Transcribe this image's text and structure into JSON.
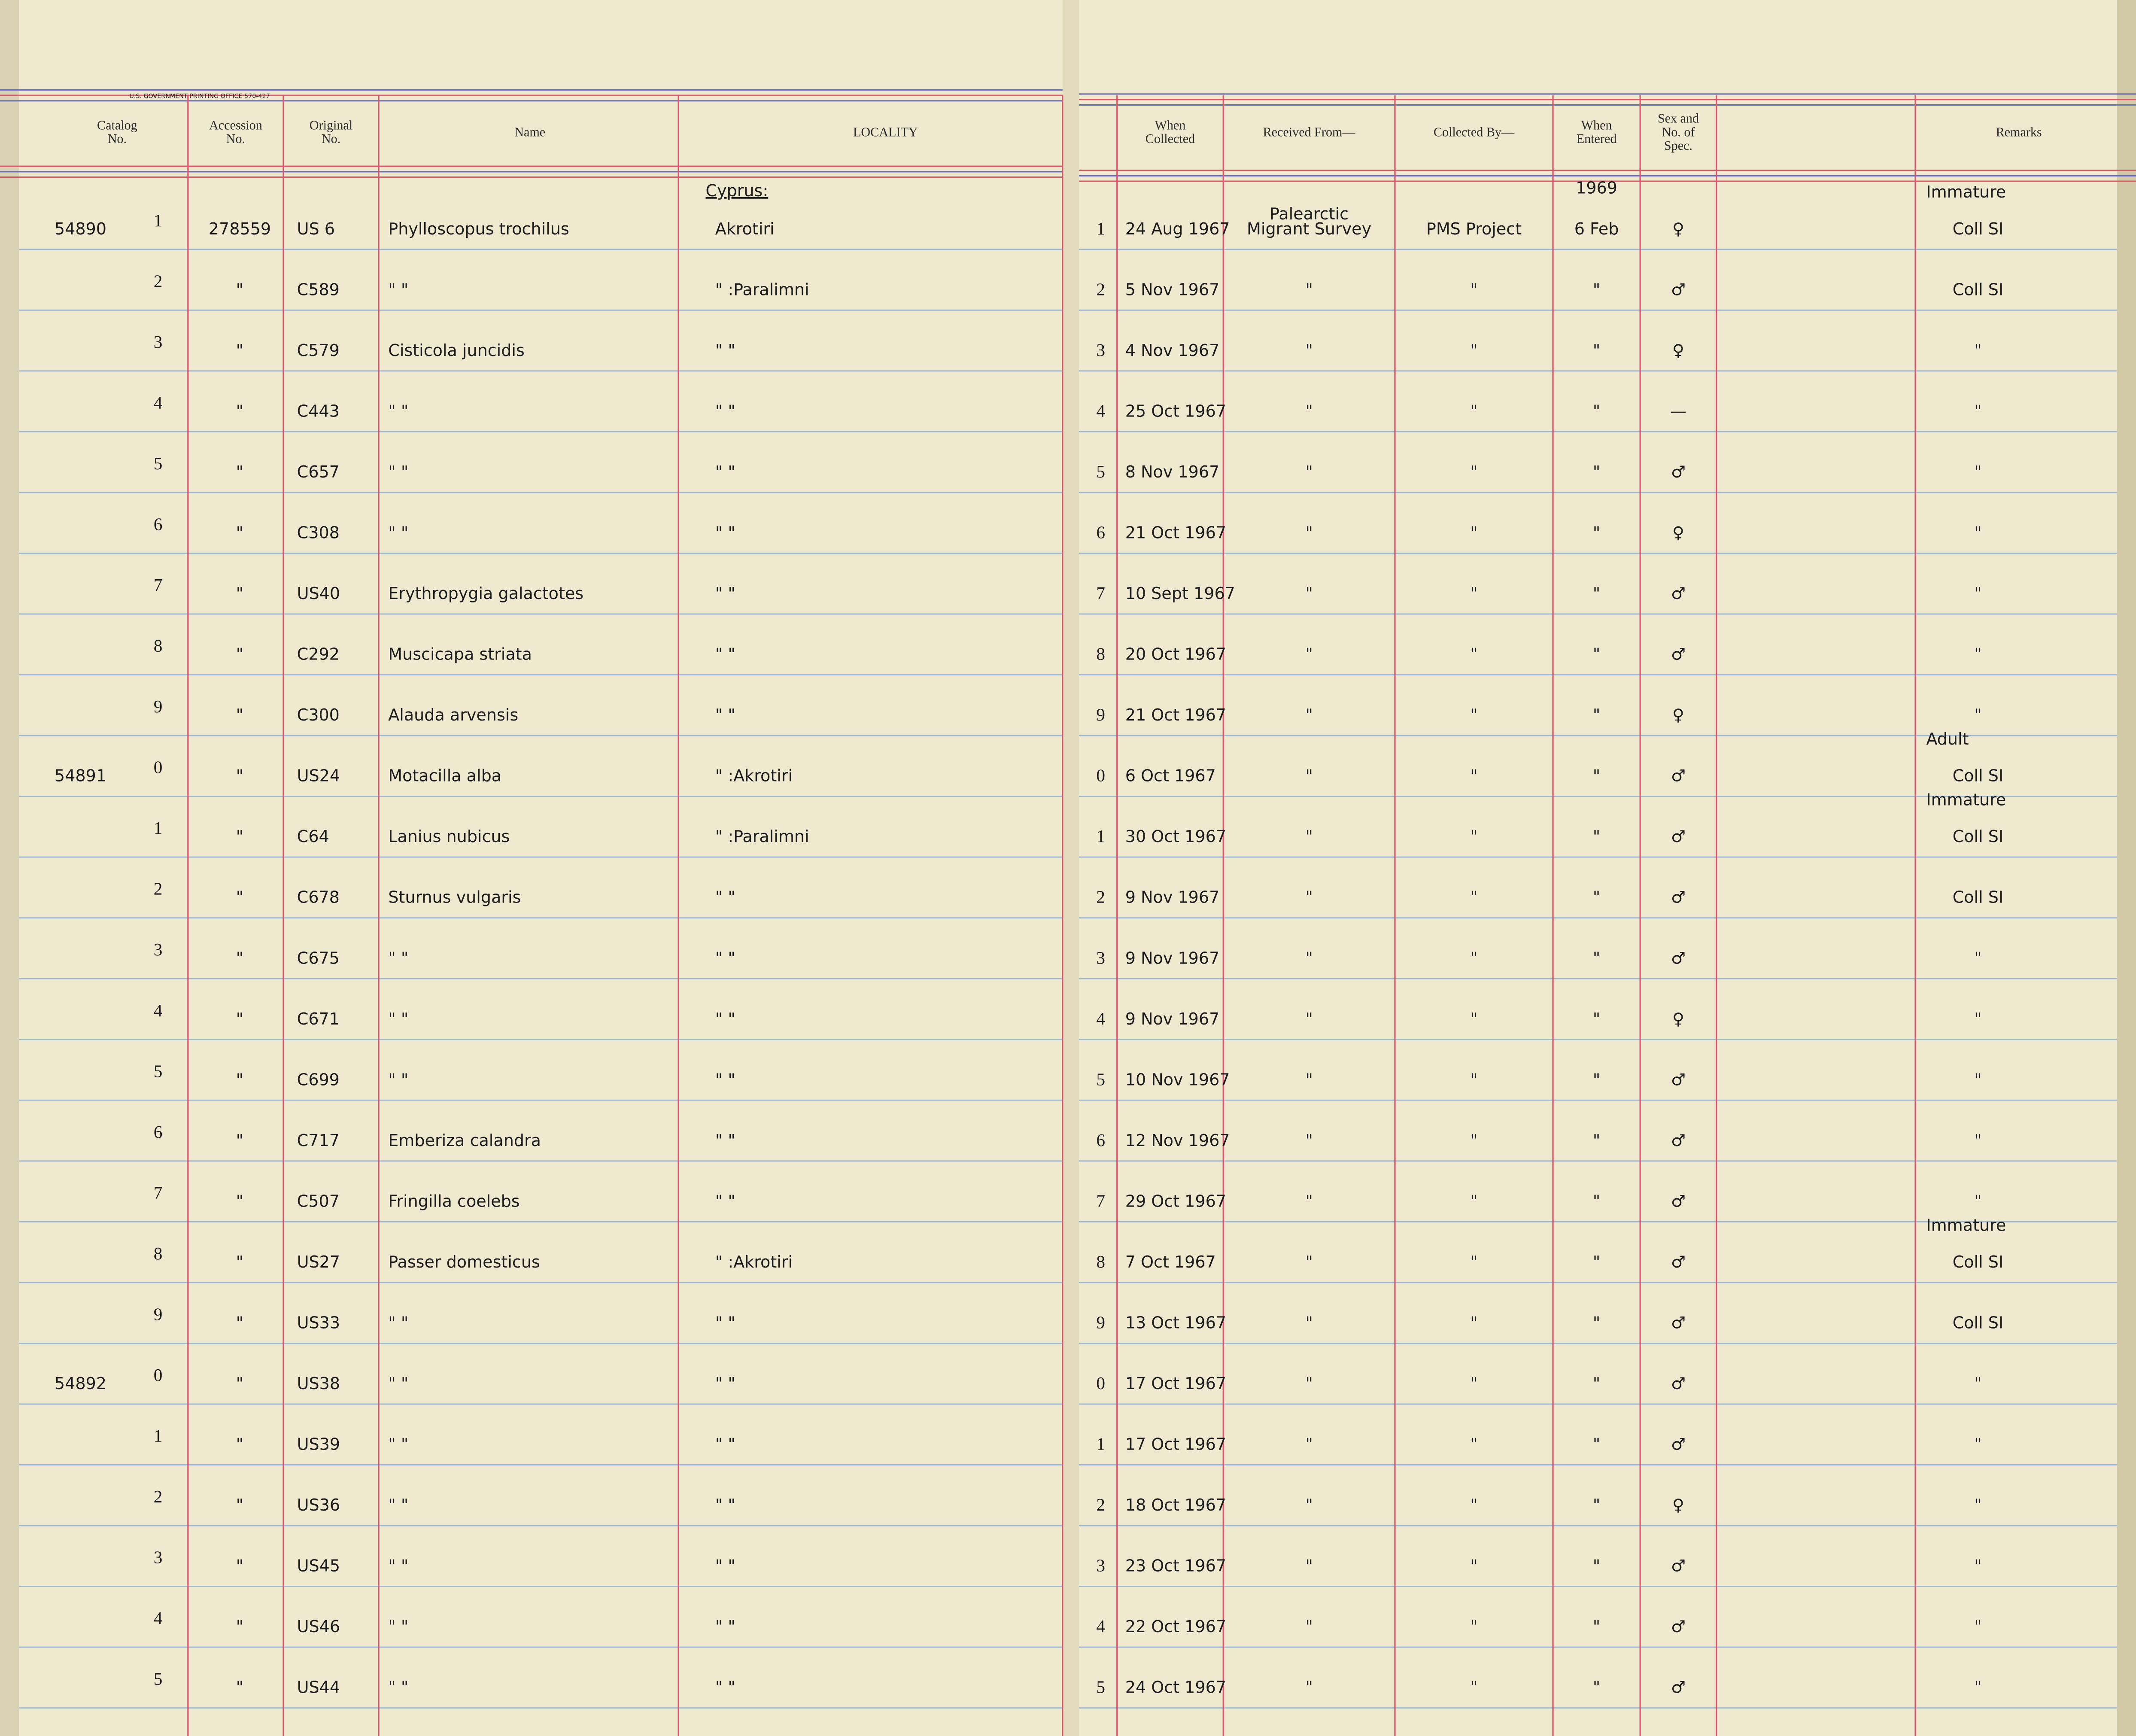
{
  "header": {
    "printer": "U.S. GOVERNMENT PRINTING OFFICE 570-427",
    "catalog": [
      "Catalog",
      "No."
    ],
    "accession": [
      "Accession",
      "No."
    ],
    "original": [
      "Original",
      "No."
    ],
    "name": [
      "Name"
    ],
    "locality": [
      "LOCALITY"
    ],
    "collected": [
      "When",
      "Collected"
    ],
    "received": [
      "Received From—"
    ],
    "collected_by": [
      "Collected By—"
    ],
    "entered": [
      "When",
      "Entered"
    ],
    "sex": [
      "Sex and",
      "No. of",
      "Spec."
    ],
    "remarks": [
      "Remarks"
    ]
  },
  "locality_heading": "Cyprus:",
  "entered_year": "1969",
  "rows": [
    {
      "catalog": "54890",
      "digit": "1",
      "accession": "278559",
      "original": "US 6",
      "name": "Phylloscopus trochilus",
      "locality": "Akrotiri",
      "line": "1",
      "collected": "24 Aug 1967",
      "received": [
        "Palearctic",
        "Migrant Survey"
      ],
      "collected_by": "PMS Project",
      "entered": "6 Feb",
      "sex": "♀",
      "remarks_note": "Immature",
      "remarks": "Coll SI"
    },
    {
      "digit": "2",
      "accession": "\"",
      "original": "C589",
      "name": "\"        \"",
      "locality": "\"     :Paralimni",
      "line": "2",
      "collected": "5 Nov 1967",
      "received": [
        "\""
      ],
      "collected_by": "\"",
      "entered": "\"",
      "sex": "♂",
      "remarks": "Coll SI"
    },
    {
      "digit": "3",
      "accession": "\"",
      "original": "C579",
      "name": "Cisticola juncidis",
      "locality": "\"    \"",
      "line": "3",
      "collected": "4 Nov 1967",
      "received": [
        "\""
      ],
      "collected_by": "\"",
      "entered": "\"",
      "sex": "♀",
      "remarks": "\""
    },
    {
      "digit": "4",
      "accession": "\"",
      "original": "C443",
      "name": "\"        \"",
      "locality": "\"    \"",
      "line": "4",
      "collected": "25 Oct 1967",
      "received": [
        "\""
      ],
      "collected_by": "\"",
      "entered": "\"",
      "sex": "—",
      "remarks": "\""
    },
    {
      "digit": "5",
      "accession": "\"",
      "original": "C657",
      "name": "\"        \"",
      "locality": "\"    \"",
      "line": "5",
      "collected": "8 Nov 1967",
      "received": [
        "\""
      ],
      "collected_by": "\"",
      "entered": "\"",
      "sex": "♂",
      "remarks": "\""
    },
    {
      "digit": "6",
      "accession": "\"",
      "original": "C308",
      "name": "\"        \"",
      "locality": "\"    \"",
      "line": "6",
      "collected": "21 Oct 1967",
      "received": [
        "\""
      ],
      "collected_by": "\"",
      "entered": "\"",
      "sex": "♀",
      "remarks": "\""
    },
    {
      "digit": "7",
      "accession": "\"",
      "original": "US40",
      "name": "Erythropygia galactotes",
      "locality": "\"    \"",
      "line": "7",
      "collected": "10 Sept 1967",
      "received": [
        "\""
      ],
      "collected_by": "\"",
      "entered": "\"",
      "sex": "♂",
      "remarks": "\""
    },
    {
      "digit": "8",
      "accession": "\"",
      "original": "C292",
      "name": "Muscicapa striata",
      "locality": "\"    \"",
      "line": "8",
      "collected": "20 Oct 1967",
      "received": [
        "\""
      ],
      "collected_by": "\"",
      "entered": "\"",
      "sex": "♂",
      "remarks": "\""
    },
    {
      "digit": "9",
      "accession": "\"",
      "original": "C300",
      "name": "Alauda arvensis",
      "locality": "\"    \"",
      "line": "9",
      "collected": "21 Oct 1967",
      "received": [
        "\""
      ],
      "collected_by": "\"",
      "entered": "\"",
      "sex": "♀",
      "remarks": "\""
    },
    {
      "catalog": "54891",
      "digit": "0",
      "accession": "\"",
      "original": "US24",
      "name": "Motacilla alba",
      "locality": "\"     :Akrotiri",
      "line": "0",
      "collected": "6 Oct 1967",
      "received": [
        "\""
      ],
      "collected_by": "\"",
      "entered": "\"",
      "sex": "♂",
      "remarks_note": "Adult",
      "remarks": "Coll SI"
    },
    {
      "digit": "1",
      "accession": "\"",
      "original": "C64",
      "name": "Lanius nubicus",
      "locality": "\"     :Paralimni",
      "line": "1",
      "collected": "30 Oct 1967",
      "received": [
        "\""
      ],
      "collected_by": "\"",
      "entered": "\"",
      "sex": "♂",
      "remarks_note": "Immature",
      "remarks": "Coll SI"
    },
    {
      "digit": "2",
      "accession": "\"",
      "original": "C678",
      "name": "Sturnus vulgaris",
      "locality": "\"    \"",
      "line": "2",
      "collected": "9 Nov 1967",
      "received": [
        "\""
      ],
      "collected_by": "\"",
      "entered": "\"",
      "sex": "♂",
      "remarks": "Coll SI"
    },
    {
      "digit": "3",
      "accession": "\"",
      "original": "C675",
      "name": "\"        \"",
      "locality": "\"    \"",
      "line": "3",
      "collected": "9 Nov 1967",
      "received": [
        "\""
      ],
      "collected_by": "\"",
      "entered": "\"",
      "sex": "♂",
      "remarks": "\""
    },
    {
      "digit": "4",
      "accession": "\"",
      "original": "C671",
      "name": "\"        \"",
      "locality": "\"    \"",
      "line": "4",
      "collected": "9 Nov 1967",
      "received": [
        "\""
      ],
      "collected_by": "\"",
      "entered": "\"",
      "sex": "♀",
      "remarks": "\""
    },
    {
      "digit": "5",
      "accession": "\"",
      "original": "C699",
      "name": "\"        \"",
      "locality": "\"    \"",
      "line": "5",
      "collected": "10 Nov 1967",
      "received": [
        "\""
      ],
      "collected_by": "\"",
      "entered": "\"",
      "sex": "♂",
      "remarks": "\""
    },
    {
      "digit": "6",
      "accession": "\"",
      "original": "C717",
      "name": "Emberiza calandra",
      "locality": "\"    \"",
      "line": "6",
      "collected": "12 Nov 1967",
      "received": [
        "\""
      ],
      "collected_by": "\"",
      "entered": "\"",
      "sex": "♂",
      "remarks": "\""
    },
    {
      "digit": "7",
      "accession": "\"",
      "original": "C507",
      "name": "Fringilla coelebs",
      "locality": "\"    \"",
      "line": "7",
      "collected": "29 Oct 1967",
      "received": [
        "\""
      ],
      "collected_by": "\"",
      "entered": "\"",
      "sex": "♂",
      "remarks": "\""
    },
    {
      "digit": "8",
      "accession": "\"",
      "original": "US27",
      "name": "Passer domesticus",
      "locality": "\"     :Akrotiri",
      "line": "8",
      "collected": "7 Oct 1967",
      "received": [
        "\""
      ],
      "collected_by": "\"",
      "entered": "\"",
      "sex": "♂",
      "remarks_note": "Immature",
      "remarks": "Coll SI"
    },
    {
      "digit": "9",
      "accession": "\"",
      "original": "US33",
      "name": "\"        \"",
      "locality": "\"    \"",
      "line": "9",
      "collected": "13 Oct 1967",
      "received": [
        "\""
      ],
      "collected_by": "\"",
      "entered": "\"",
      "sex": "♂",
      "remarks": "Coll SI"
    },
    {
      "catalog": "54892",
      "digit": "0",
      "accession": "\"",
      "original": "US38",
      "name": "\"        \"",
      "locality": "\"    \"",
      "line": "0",
      "collected": "17 Oct 1967",
      "received": [
        "\""
      ],
      "collected_by": "\"",
      "entered": "\"",
      "sex": "♂",
      "remarks": "\""
    },
    {
      "digit": "1",
      "accession": "\"",
      "original": "US39",
      "name": "\"        \"",
      "locality": "\"    \"",
      "line": "1",
      "collected": "17 Oct 1967",
      "received": [
        "\""
      ],
      "collected_by": "\"",
      "entered": "\"",
      "sex": "♂",
      "remarks": "\""
    },
    {
      "digit": "2",
      "accession": "\"",
      "original": "US36",
      "name": "\"        \"",
      "locality": "\"    \"",
      "line": "2",
      "collected": "18 Oct 1967",
      "received": [
        "\""
      ],
      "collected_by": "\"",
      "entered": "\"",
      "sex": "♀",
      "remarks": "\""
    },
    {
      "digit": "3",
      "accession": "\"",
      "original": "US45",
      "name": "\"        \"",
      "locality": "\"    \"",
      "line": "3",
      "collected": "23 Oct 1967",
      "received": [
        "\""
      ],
      "collected_by": "\"",
      "entered": "\"",
      "sex": "♂",
      "remarks": "\""
    },
    {
      "digit": "4",
      "accession": "\"",
      "original": "US46",
      "name": "\"        \"",
      "locality": "\"    \"",
      "line": "4",
      "collected": "22 Oct 1967",
      "received": [
        "\""
      ],
      "collected_by": "\"",
      "entered": "\"",
      "sex": "♂",
      "remarks": "\""
    },
    {
      "digit": "5",
      "accession": "\"",
      "original": "US44",
      "name": "\"        \"",
      "locality": "\"    \"",
      "line": "5",
      "collected": "24 Oct 1967",
      "received": [
        "\""
      ],
      "collected_by": "\"",
      "entered": "\"",
      "sex": "♂",
      "remarks": "\""
    }
  ]
}
